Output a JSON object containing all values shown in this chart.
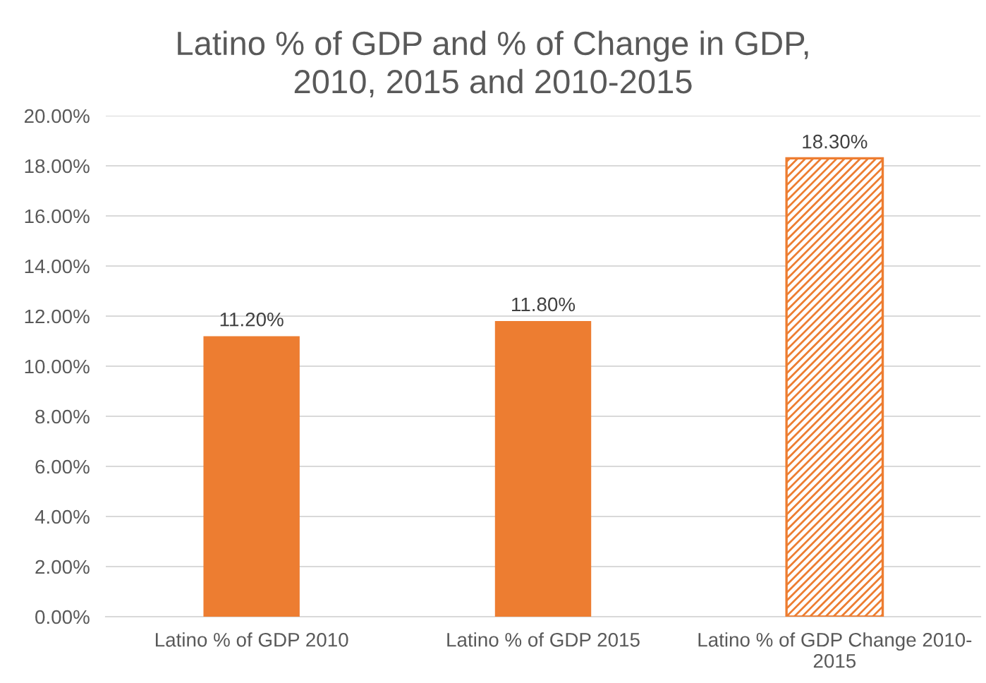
{
  "chart_data": {
    "type": "bar",
    "title": "Latino % of GDP and % of Change in GDP,\n2010, 2015 and 2010-2015",
    "categories": [
      "Latino % of GDP 2010",
      "Latino % of GDP 2015",
      "Latino % of GDP Change 2010-2015"
    ],
    "values": [
      11.2,
      11.8,
      18.3
    ],
    "colors": [
      "#ed7d31",
      "#ed7d31",
      "#ed7d31"
    ],
    "value_labels": [
      "11.20%",
      "11.80%",
      "18.30%"
    ],
    "ylim": [
      0,
      20
    ],
    "yticks": [
      {
        "value": 0,
        "label": "0.00%"
      },
      {
        "value": 2,
        "label": "2.00%"
      },
      {
        "value": 4,
        "label": "4.00%"
      },
      {
        "value": 6,
        "label": "6.00%"
      },
      {
        "value": 8,
        "label": "8.00%"
      },
      {
        "value": 10,
        "label": "10.00%"
      },
      {
        "value": 12,
        "label": "12.00%"
      },
      {
        "value": 14,
        "label": "14.00%"
      },
      {
        "value": 16,
        "label": "16.00%"
      },
      {
        "value": 18,
        "label": "18.00%"
      },
      {
        "value": 20,
        "label": "20.00%"
      }
    ],
    "grid": "y",
    "legend": false
  }
}
